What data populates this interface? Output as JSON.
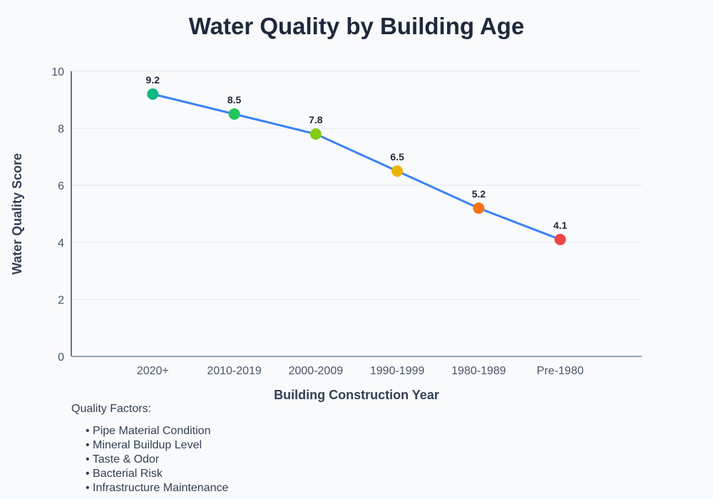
{
  "chart_data": {
    "type": "line",
    "title": "Water Quality by Building Age",
    "xlabel": "Building Construction Year",
    "ylabel": "Water Quality Score",
    "categories": [
      "2020+",
      "2010-2019",
      "2000-2009",
      "1990-1999",
      "1980-1989",
      "Pre-1980"
    ],
    "values": [
      9.2,
      8.5,
      7.8,
      6.5,
      5.2,
      4.1
    ],
    "ylim": [
      0,
      10
    ],
    "yticks": [
      0,
      2,
      4,
      6,
      8,
      10
    ],
    "grid": true,
    "line_color": "#3b82f6",
    "point_colors": [
      "#10b981",
      "#22c55e",
      "#84cc16",
      "#eab308",
      "#f97316",
      "#ef4444"
    ],
    "data_labels": true
  },
  "factors": {
    "heading": "Quality Factors:",
    "items": [
      "• Pipe Material Condition",
      "• Mineral Buildup Level",
      "• Taste & Odor",
      "• Bacterial Risk",
      "• Infrastructure Maintenance"
    ]
  }
}
